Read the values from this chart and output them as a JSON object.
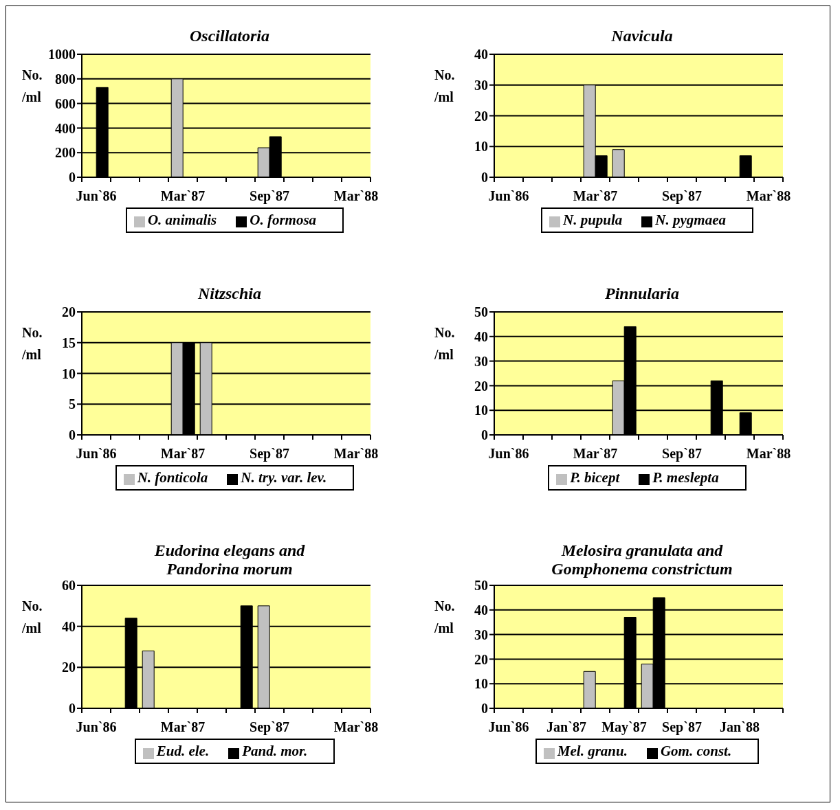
{
  "chart_data": [
    {
      "type": "bar",
      "title": "Oscillatoria",
      "ylabel": "No. /ml",
      "categories": [
        "Jun`86",
        null,
        null,
        "Mar`87",
        null,
        null,
        "Sep`87",
        null,
        null,
        "Mar`88"
      ],
      "series": [
        {
          "name": "O. animalis",
          "color": "#c0c0c0",
          "values": [
            null,
            null,
            null,
            800,
            null,
            null,
            240,
            null,
            null,
            null
          ]
        },
        {
          "name": "O. formosa",
          "color": "#000000",
          "values": [
            730,
            null,
            null,
            null,
            null,
            null,
            330,
            null,
            null,
            null
          ]
        }
      ],
      "ylim": [
        0,
        1000
      ],
      "yticks": [
        0,
        200,
        400,
        600,
        800,
        1000
      ],
      "grid": "y",
      "legend": "bottom"
    },
    {
      "type": "bar",
      "title": "Navicula",
      "ylabel": "No. /ml",
      "categories": [
        "Jun`86",
        null,
        null,
        "Mar`87",
        null,
        null,
        "Sep`87",
        null,
        null,
        "Mar`88"
      ],
      "series": [
        {
          "name": "N. pupula",
          "color": "#c0c0c0",
          "values": [
            null,
            null,
            null,
            30,
            9,
            null,
            null,
            null,
            null,
            null
          ]
        },
        {
          "name": "N. pygmaea",
          "color": "#000000",
          "values": [
            null,
            null,
            null,
            7,
            null,
            null,
            null,
            null,
            7,
            null
          ]
        }
      ],
      "ylim": [
        0,
        40
      ],
      "yticks": [
        0,
        10,
        20,
        30,
        40
      ],
      "grid": "y",
      "legend": "bottom"
    },
    {
      "type": "bar",
      "title": "Nitzschia",
      "ylabel": "No. /ml",
      "categories": [
        "Jun`86",
        null,
        null,
        "Mar`87",
        null,
        null,
        "Sep`87",
        null,
        null,
        "Mar`88"
      ],
      "series": [
        {
          "name": "N. fonticola",
          "color": "#c0c0c0",
          "values": [
            null,
            null,
            null,
            15,
            15,
            null,
            null,
            null,
            null,
            null
          ]
        },
        {
          "name": "N. try. var. lev.",
          "color": "#000000",
          "values": [
            null,
            null,
            null,
            15,
            null,
            null,
            null,
            null,
            null,
            null
          ]
        }
      ],
      "ylim": [
        0,
        20
      ],
      "yticks": [
        0,
        5,
        10,
        15,
        20
      ],
      "grid": "y",
      "legend": "bottom"
    },
    {
      "type": "bar",
      "title": "Pinnularia",
      "ylabel": "No. /ml",
      "categories": [
        "Jun`86",
        null,
        null,
        "Mar`87",
        null,
        null,
        "Sep`87",
        null,
        null,
        "Mar`88"
      ],
      "series": [
        {
          "name": "P. bicept",
          "color": "#c0c0c0",
          "values": [
            null,
            null,
            null,
            null,
            22,
            null,
            null,
            null,
            null,
            null
          ]
        },
        {
          "name": "P. meslepta",
          "color": "#000000",
          "values": [
            null,
            null,
            null,
            null,
            44,
            null,
            null,
            22,
            9,
            null
          ]
        }
      ],
      "ylim": [
        0,
        50
      ],
      "yticks": [
        0,
        10,
        20,
        30,
        40,
        50
      ],
      "grid": "y",
      "legend": "bottom"
    },
    {
      "type": "bar",
      "title": "Eudorina elegans and Pandorina morum",
      "ylabel": "No. /ml",
      "categories": [
        "Jun`86",
        null,
        null,
        "Mar`87",
        null,
        null,
        "Sep`87",
        null,
        null,
        "Mar`88"
      ],
      "series": [
        {
          "name": "Eud. ele.",
          "color": "#c0c0c0",
          "values": [
            null,
            null,
            28,
            null,
            null,
            null,
            50,
            null,
            null,
            null
          ]
        },
        {
          "name": "Pand. mor.",
          "color": "#000000",
          "values": [
            null,
            44,
            null,
            null,
            null,
            50,
            null,
            null,
            null,
            null
          ]
        }
      ],
      "ylim": [
        0,
        60
      ],
      "yticks": [
        0,
        20,
        40,
        60
      ],
      "grid": "y",
      "legend": "bottom"
    },
    {
      "type": "bar",
      "title": "Melosira granulata and Gomphonema constrictum",
      "ylabel": "No. /ml",
      "categories": [
        "Jun`86",
        null,
        "Jan`87",
        null,
        "May`87",
        null,
        "Sep`87",
        null,
        "Jan`88",
        null
      ],
      "series": [
        {
          "name": "Mel. granu.",
          "color": "#c0c0c0",
          "values": [
            null,
            null,
            null,
            15,
            null,
            18,
            null,
            null,
            null,
            null
          ]
        },
        {
          "name": "Gom. const.",
          "color": "#000000",
          "values": [
            null,
            null,
            null,
            null,
            37,
            45,
            null,
            null,
            null,
            null
          ]
        }
      ],
      "ylim": [
        0,
        50
      ],
      "yticks": [
        0,
        10,
        20,
        30,
        40,
        50
      ],
      "grid": "y",
      "legend": "bottom"
    }
  ]
}
